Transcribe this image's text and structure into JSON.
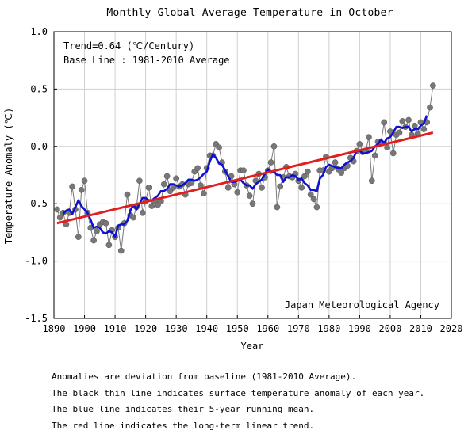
{
  "chart_data": {
    "type": "line",
    "title": "Monthly Global Average Temperature in October",
    "xlabel": "Year",
    "ylabel": "Temperature Anomaly (℃)",
    "xlim": [
      1890,
      2020
    ],
    "ylim": [
      -1.5,
      1.0
    ],
    "x_ticks": [
      1890,
      1900,
      1910,
      1920,
      1930,
      1940,
      1950,
      1960,
      1970,
      1980,
      1990,
      2000,
      2010,
      2020
    ],
    "x_tick_labels": [
      "1890",
      "1900",
      "1910",
      "1920",
      "1930",
      "1940",
      "1950",
      "1960",
      "1970",
      "1980",
      "1990",
      "2000",
      "2010",
      "2020"
    ],
    "y_ticks": [
      -1.5,
      -1.0,
      -0.5,
      0.0,
      0.5,
      1.0
    ],
    "y_tick_labels": [
      "-1.5",
      "-1.0",
      "-0.5",
      "0.0",
      "0.5",
      "1.0"
    ],
    "grid": true,
    "annotations": {
      "trend": "Trend=0.64 (℃/Century)",
      "baseline": "Base Line : 1981-2010 Average",
      "source": "Japan Meteorological Agency"
    },
    "series": [
      {
        "color": "#777777",
        "style": "thin line with circular markers",
        "x": [
          1891,
          1892,
          1893,
          1894,
          1895,
          1896,
          1897,
          1898,
          1899,
          1900,
          1901,
          1902,
          1903,
          1904,
          1905,
          1906,
          1907,
          1908,
          1909,
          1910,
          1911,
          1912,
          1913,
          1914,
          1915,
          1916,
          1917,
          1918,
          1919,
          1920,
          1921,
          1922,
          1923,
          1924,
          1925,
          1926,
          1927,
          1928,
          1929,
          1930,
          1931,
          1932,
          1933,
          1934,
          1935,
          1936,
          1937,
          1938,
          1939,
          1940,
          1941,
          1942,
          1943,
          1944,
          1945,
          1946,
          1947,
          1948,
          1949,
          1950,
          1951,
          1952,
          1953,
          1954,
          1955,
          1956,
          1957,
          1958,
          1959,
          1960,
          1961,
          1962,
          1963,
          1964,
          1965,
          1966,
          1967,
          1968,
          1969,
          1970,
          1971,
          1972,
          1973,
          1974,
          1975,
          1976,
          1977,
          1978,
          1979,
          1980,
          1981,
          1982,
          1983,
          1984,
          1985,
          1986,
          1987,
          1988,
          1989,
          1990,
          1991,
          1992,
          1993,
          1994,
          1995,
          1996,
          1997,
          1998,
          1999,
          2000,
          2001,
          2002,
          2003,
          2004,
          2005,
          2006,
          2007,
          2008,
          2009,
          2010,
          2011,
          2012,
          2013,
          2014
        ],
        "values": [
          -0.55,
          -0.62,
          -0.58,
          -0.68,
          -0.58,
          -0.35,
          -0.55,
          -0.79,
          -0.38,
          -0.3,
          -0.58,
          -0.71,
          -0.82,
          -0.74,
          -0.68,
          -0.66,
          -0.67,
          -0.86,
          -0.73,
          -0.79,
          -0.71,
          -0.91,
          -0.67,
          -0.42,
          -0.6,
          -0.62,
          -0.53,
          -0.3,
          -0.58,
          -0.48,
          -0.36,
          -0.52,
          -0.48,
          -0.51,
          -0.48,
          -0.33,
          -0.26,
          -0.39,
          -0.36,
          -0.28,
          -0.35,
          -0.33,
          -0.42,
          -0.33,
          -0.32,
          -0.22,
          -0.19,
          -0.34,
          -0.41,
          -0.19,
          -0.08,
          -0.08,
          0.02,
          -0.01,
          -0.14,
          -0.22,
          -0.36,
          -0.26,
          -0.33,
          -0.4,
          -0.21,
          -0.21,
          -0.34,
          -0.43,
          -0.5,
          -0.3,
          -0.24,
          -0.36,
          -0.27,
          -0.21,
          -0.14,
          0.0,
          -0.53,
          -0.35,
          -0.27,
          -0.18,
          -0.26,
          -0.27,
          -0.24,
          -0.3,
          -0.36,
          -0.26,
          -0.22,
          -0.42,
          -0.46,
          -0.53,
          -0.21,
          -0.21,
          -0.09,
          -0.22,
          -0.19,
          -0.14,
          -0.2,
          -0.23,
          -0.19,
          -0.17,
          -0.1,
          -0.13,
          -0.04,
          0.02,
          -0.05,
          -0.04,
          0.08,
          -0.3,
          -0.08,
          0.04,
          0.03,
          0.21,
          -0.01,
          0.13,
          -0.06,
          0.1,
          0.12,
          0.22,
          0.17,
          0.23,
          0.1,
          0.18,
          0.11,
          0.21,
          0.15,
          0.21,
          0.34,
          0.53
        ]
      },
      {
        "color": "#1010d0",
        "style": "thick line (5-year running mean)",
        "x": [
          1893,
          1894,
          1895,
          1896,
          1897,
          1898,
          1899,
          1900,
          1901,
          1902,
          1903,
          1904,
          1905,
          1906,
          1907,
          1908,
          1909,
          1910,
          1911,
          1912,
          1913,
          1914,
          1915,
          1916,
          1917,
          1918,
          1919,
          1920,
          1921,
          1922,
          1923,
          1924,
          1925,
          1926,
          1927,
          1928,
          1929,
          1930,
          1931,
          1932,
          1933,
          1934,
          1935,
          1936,
          1937,
          1938,
          1939,
          1940,
          1941,
          1942,
          1943,
          1944,
          1945,
          1946,
          1947,
          1948,
          1949,
          1950,
          1951,
          1952,
          1953,
          1954,
          1955,
          1956,
          1957,
          1958,
          1959,
          1960,
          1961,
          1962,
          1963,
          1964,
          1965,
          1966,
          1967,
          1968,
          1969,
          1970,
          1971,
          1972,
          1973,
          1974,
          1975,
          1976,
          1977,
          1978,
          1979,
          1980,
          1981,
          1982,
          1983,
          1984,
          1985,
          1986,
          1987,
          1988,
          1989,
          1990,
          1991,
          1992,
          1993,
          1994,
          1995,
          1996,
          1997,
          1998,
          1999,
          2000,
          2001,
          2002,
          2003,
          2004,
          2005,
          2006,
          2007,
          2008,
          2009,
          2010,
          2011,
          2012
        ],
        "values": [
          -0.59,
          -0.56,
          -0.55,
          -0.59,
          -0.53,
          -0.47,
          -0.52,
          -0.55,
          -0.58,
          -0.64,
          -0.71,
          -0.7,
          -0.71,
          -0.75,
          -0.76,
          -0.74,
          -0.75,
          -0.79,
          -0.69,
          -0.68,
          -0.68,
          -0.65,
          -0.56,
          -0.51,
          -0.55,
          -0.5,
          -0.45,
          -0.45,
          -0.47,
          -0.47,
          -0.45,
          -0.43,
          -0.39,
          -0.39,
          -0.37,
          -0.33,
          -0.33,
          -0.34,
          -0.35,
          -0.34,
          -0.32,
          -0.29,
          -0.29,
          -0.3,
          -0.29,
          -0.27,
          -0.24,
          -0.22,
          -0.13,
          -0.07,
          -0.1,
          -0.15,
          -0.16,
          -0.21,
          -0.26,
          -0.31,
          -0.31,
          -0.3,
          -0.29,
          -0.32,
          -0.34,
          -0.34,
          -0.37,
          -0.33,
          -0.31,
          -0.29,
          -0.24,
          -0.2,
          -0.23,
          -0.22,
          -0.25,
          -0.25,
          -0.31,
          -0.27,
          -0.27,
          -0.25,
          -0.26,
          -0.29,
          -0.28,
          -0.32,
          -0.34,
          -0.38,
          -0.38,
          -0.39,
          -0.28,
          -0.25,
          -0.18,
          -0.16,
          -0.17,
          -0.18,
          -0.19,
          -0.19,
          -0.16,
          -0.14,
          -0.13,
          -0.1,
          -0.04,
          -0.04,
          -0.06,
          -0.06,
          -0.05,
          -0.04,
          0.0,
          0.02,
          0.06,
          0.03,
          0.07,
          0.08,
          0.12,
          0.17,
          0.17,
          0.16,
          0.17,
          0.17,
          0.13,
          0.15,
          0.15,
          0.18,
          0.2,
          0.27
        ]
      },
      {
        "color": "#e02020",
        "style": "thick straight line (long-term linear trend)",
        "x": [
          1891,
          2014
        ],
        "values": [
          -0.67,
          0.12
        ]
      }
    ]
  },
  "notes": [
    "Anomalies are deviation from baseline (1981-2010 Average).",
    "The black thin line indicates surface temperature anomaly of each year.",
    "The blue line indicates their 5-year running mean.",
    "The red line indicates the long-term linear trend."
  ]
}
